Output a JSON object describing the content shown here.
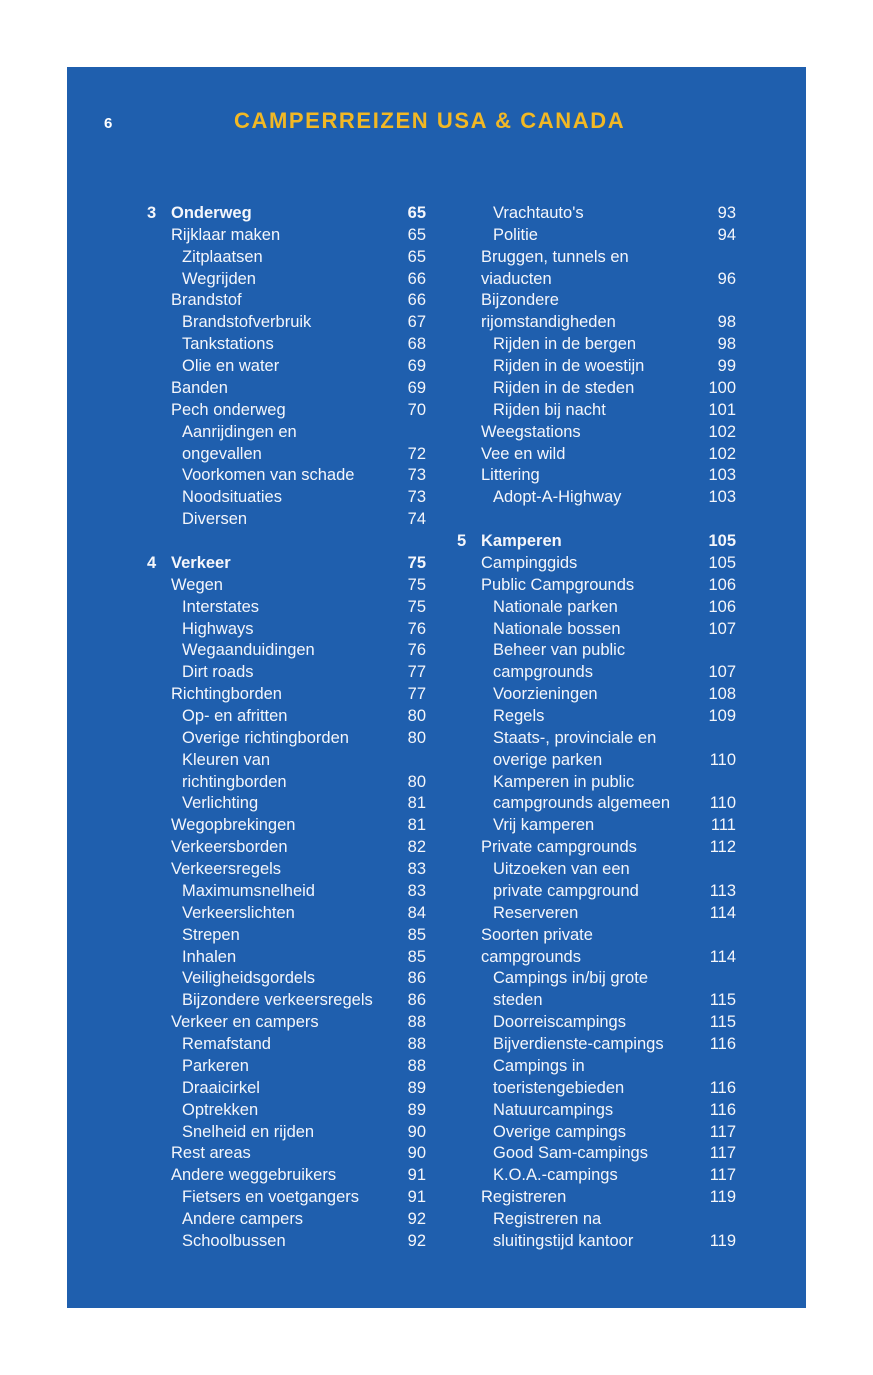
{
  "page_number": "6",
  "header_title": "CAMPERREIZEN USA & CANADA",
  "columns": [
    [
      {
        "num": "3",
        "text": [
          "Onderweg"
        ],
        "page": "65",
        "level": 0,
        "bold": true
      },
      {
        "text": [
          "Rijklaar maken"
        ],
        "page": "65",
        "level": 0
      },
      {
        "text": [
          "Zitplaatsen"
        ],
        "page": "65",
        "level": 1
      },
      {
        "text": [
          "Wegrijden"
        ],
        "page": "66",
        "level": 1
      },
      {
        "text": [
          "Brandstof"
        ],
        "page": "66",
        "level": 0
      },
      {
        "text": [
          "Brandstofverbruik"
        ],
        "page": "67",
        "level": 1
      },
      {
        "text": [
          "Tankstations"
        ],
        "page": "68",
        "level": 1
      },
      {
        "text": [
          "Olie en water"
        ],
        "page": "69",
        "level": 1
      },
      {
        "text": [
          "Banden"
        ],
        "page": "69",
        "level": 0
      },
      {
        "text": [
          "Pech onderweg"
        ],
        "page": "70",
        "level": 0
      },
      {
        "text": [
          "Aanrijdingen en",
          "ongevallen"
        ],
        "page": "72",
        "level": 1
      },
      {
        "text": [
          "Voorkomen van schade"
        ],
        "page": "73",
        "level": 1
      },
      {
        "text": [
          "Noodsituaties"
        ],
        "page": "73",
        "level": 1
      },
      {
        "text": [
          "Diversen"
        ],
        "page": "74",
        "level": 1
      },
      {
        "blank": true
      },
      {
        "num": "4",
        "text": [
          "Verkeer"
        ],
        "page": "75",
        "level": 0,
        "bold": true
      },
      {
        "text": [
          "Wegen"
        ],
        "page": "75",
        "level": 0
      },
      {
        "text": [
          "Interstates"
        ],
        "page": "75",
        "level": 1
      },
      {
        "text": [
          "Highways"
        ],
        "page": "76",
        "level": 1
      },
      {
        "text": [
          "Wegaanduidingen"
        ],
        "page": "76",
        "level": 1
      },
      {
        "text": [
          "Dirt roads"
        ],
        "page": "77",
        "level": 1
      },
      {
        "text": [
          "Richtingborden"
        ],
        "page": "77",
        "level": 0
      },
      {
        "text": [
          "Op- en afritten"
        ],
        "page": "80",
        "level": 1
      },
      {
        "text": [
          "Overige richtingborden"
        ],
        "page": "80",
        "level": 1
      },
      {
        "text": [
          "Kleuren van",
          "richtingborden"
        ],
        "page": "80",
        "level": 1
      },
      {
        "text": [
          "Verlichting"
        ],
        "page": "81",
        "level": 1
      },
      {
        "text": [
          "Wegopbrekingen"
        ],
        "page": "81",
        "level": 0
      },
      {
        "text": [
          "Verkeersborden"
        ],
        "page": "82",
        "level": 0
      },
      {
        "text": [
          "Verkeersregels"
        ],
        "page": "83",
        "level": 0
      },
      {
        "text": [
          "Maximumsnelheid"
        ],
        "page": "83",
        "level": 1
      },
      {
        "text": [
          "Verkeerslichten"
        ],
        "page": "84",
        "level": 1
      },
      {
        "text": [
          "Strepen"
        ],
        "page": "85",
        "level": 1
      },
      {
        "text": [
          "Inhalen"
        ],
        "page": "85",
        "level": 1
      },
      {
        "text": [
          "Veiligheidsgordels"
        ],
        "page": "86",
        "level": 1
      },
      {
        "text": [
          "Bijzondere verkeersregels"
        ],
        "page": "86",
        "level": 1
      },
      {
        "text": [
          "Verkeer en campers"
        ],
        "page": "88",
        "level": 0
      },
      {
        "text": [
          "Remafstand"
        ],
        "page": "88",
        "level": 1
      },
      {
        "text": [
          "Parkeren"
        ],
        "page": "88",
        "level": 1
      },
      {
        "text": [
          "Draaicirkel"
        ],
        "page": "89",
        "level": 1
      },
      {
        "text": [
          "Optrekken"
        ],
        "page": "89",
        "level": 1
      },
      {
        "text": [
          "Snelheid en rijden"
        ],
        "page": "90",
        "level": 1
      },
      {
        "text": [
          "Rest areas"
        ],
        "page": "90",
        "level": 0
      },
      {
        "text": [
          "Andere weggebruikers"
        ],
        "page": "91",
        "level": 0
      },
      {
        "text": [
          "Fietsers en voetgangers"
        ],
        "page": "91",
        "level": 1
      },
      {
        "text": [
          "Andere campers"
        ],
        "page": "92",
        "level": 1
      },
      {
        "text": [
          "Schoolbussen"
        ],
        "page": "92",
        "level": 1
      }
    ],
    [
      {
        "text": [
          "Vrachtauto's"
        ],
        "page": "93",
        "level": 1
      },
      {
        "text": [
          "Politie"
        ],
        "page": "94",
        "level": 1
      },
      {
        "text": [
          "Bruggen, tunnels en",
          "viaducten"
        ],
        "page": "96",
        "level": 0
      },
      {
        "text": [
          "Bijzondere",
          "rijomstandigheden"
        ],
        "page": "98",
        "level": 0
      },
      {
        "text": [
          "Rijden in de bergen"
        ],
        "page": "98",
        "level": 1
      },
      {
        "text": [
          "Rijden in de woestijn"
        ],
        "page": "99",
        "level": 1
      },
      {
        "text": [
          "Rijden in de steden"
        ],
        "page": "100",
        "level": 1
      },
      {
        "text": [
          "Rijden bij nacht"
        ],
        "page": "101",
        "level": 1
      },
      {
        "text": [
          "Weegstations"
        ],
        "page": "102",
        "level": 0
      },
      {
        "text": [
          "Vee en wild"
        ],
        "page": "102",
        "level": 0
      },
      {
        "text": [
          "Littering"
        ],
        "page": "103",
        "level": 0
      },
      {
        "text": [
          "Adopt-A-Highway"
        ],
        "page": "103",
        "level": 1
      },
      {
        "blank": true
      },
      {
        "num": "5",
        "text": [
          "Kamperen"
        ],
        "page": "105",
        "level": 0,
        "bold": true
      },
      {
        "text": [
          "Campinggids"
        ],
        "page": "105",
        "level": 0
      },
      {
        "text": [
          "Public Campgrounds"
        ],
        "page": "106",
        "level": 0
      },
      {
        "text": [
          "Nationale parken"
        ],
        "page": "106",
        "level": 1
      },
      {
        "text": [
          "Nationale bossen"
        ],
        "page": "107",
        "level": 1
      },
      {
        "text": [
          "Beheer van public",
          "campgrounds"
        ],
        "page": "107",
        "level": 1
      },
      {
        "text": [
          "Voorzieningen"
        ],
        "page": "108",
        "level": 1
      },
      {
        "text": [
          "Regels"
        ],
        "page": "109",
        "level": 1
      },
      {
        "text": [
          "Staats-, provinciale en",
          "overige parken"
        ],
        "page": "110",
        "level": 1
      },
      {
        "text": [
          "Kamperen in public",
          "campgrounds algemeen"
        ],
        "page": "110",
        "level": 1
      },
      {
        "text": [
          "Vrij kamperen"
        ],
        "page": "111",
        "level": 1
      },
      {
        "text": [
          "Private campgrounds"
        ],
        "page": "112",
        "level": 0
      },
      {
        "text": [
          "Uitzoeken van een",
          "private campground"
        ],
        "page": "113",
        "level": 1
      },
      {
        "text": [
          "Reserveren"
        ],
        "page": "114",
        "level": 1
      },
      {
        "text": [
          "Soorten private",
          "campgrounds"
        ],
        "page": "114",
        "level": 0
      },
      {
        "text": [
          "Campings in/bij grote",
          "steden"
        ],
        "page": "115",
        "level": 1
      },
      {
        "text": [
          "Doorreiscampings"
        ],
        "page": "115",
        "level": 1
      },
      {
        "text": [
          "Bijverdienste-campings"
        ],
        "page": "116",
        "level": 1
      },
      {
        "text": [
          "Campings in",
          "toeristengebieden"
        ],
        "page": "116",
        "level": 1
      },
      {
        "text": [
          "Natuurcampings"
        ],
        "page": "116",
        "level": 1
      },
      {
        "text": [
          "Overige campings"
        ],
        "page": "117",
        "level": 1
      },
      {
        "text": [
          "Good Sam-campings"
        ],
        "page": "117",
        "level": 1
      },
      {
        "text": [
          "K.O.A.-campings"
        ],
        "page": "117",
        "level": 1
      },
      {
        "text": [
          "Registreren"
        ],
        "page": "119",
        "level": 0
      },
      {
        "text": [
          "Registreren na",
          "sluitingstijd kantoor"
        ],
        "page": "119",
        "level": 1
      }
    ]
  ],
  "colors": {
    "background": "#1f5fae",
    "title": "#f2b824",
    "text": "#f4f6fb"
  }
}
